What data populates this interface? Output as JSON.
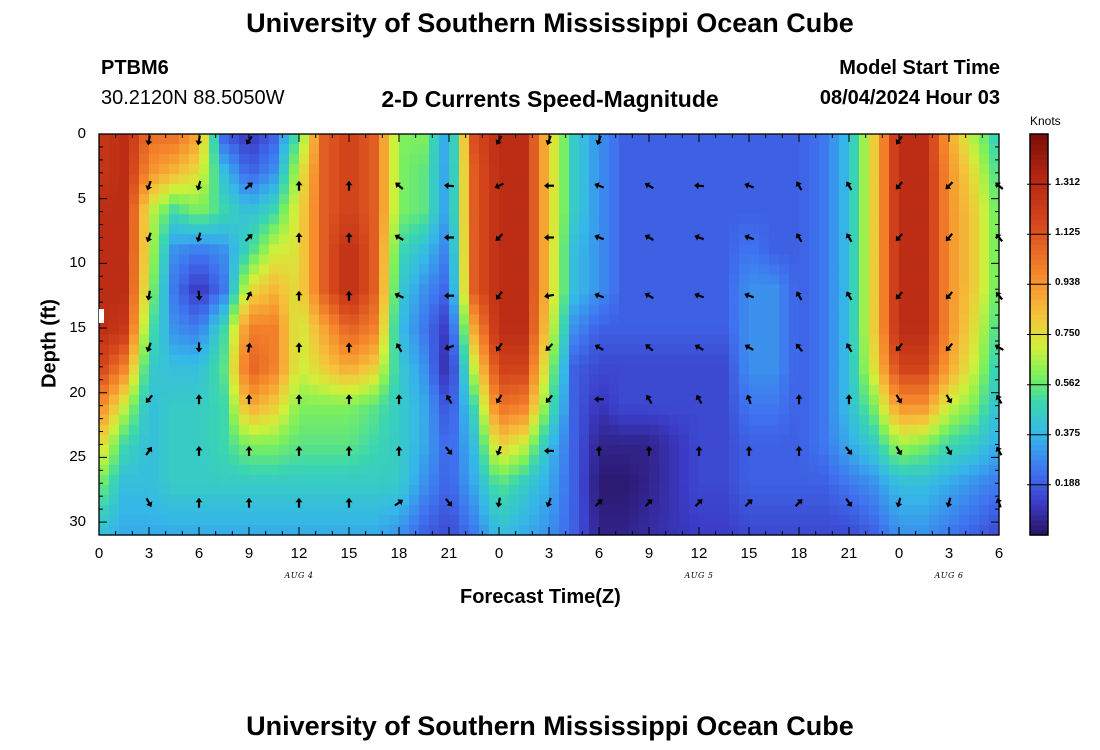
{
  "title": "University of Southern Mississippi Ocean Cube",
  "footer_title": "University of Southern Mississippi Ocean Cube",
  "station": {
    "id": "PTBM6",
    "coords": "30.2120N  88.5050W"
  },
  "plot_title": "2-D Currents Speed-Magnitude",
  "model_start": {
    "label": "Model Start Time",
    "value": "08/04/2024 Hour 03"
  },
  "chart_data": {
    "type": "heatmap",
    "title": "2-D Currents Speed-Magnitude",
    "xlabel": "Forecast Time(Z)",
    "ylabel": "Depth (ft)",
    "x_range_hours": [
      0,
      54
    ],
    "y_range_ft": [
      0,
      31
    ],
    "x_tick_labels": [
      "0",
      "3",
      "6",
      "9",
      "12",
      "15",
      "18",
      "21",
      "0",
      "3",
      "6",
      "9",
      "12",
      "15",
      "18",
      "21",
      "0",
      "3",
      "6"
    ],
    "y_tick_labels": [
      "0",
      "5",
      "10",
      "15",
      "20",
      "25",
      "30"
    ],
    "y_tick_values": [
      0,
      5,
      10,
      15,
      20,
      25,
      30
    ],
    "day_labels": [
      {
        "text": "AUG 4",
        "hour": 12
      },
      {
        "text": "AUG 5",
        "hour": 36
      },
      {
        "text": "AUG 6",
        "hour": 51
      }
    ],
    "colorbar": {
      "label": "Knots",
      "min": 0.0,
      "max": 1.5,
      "ticks": [
        "1.312",
        "1.125",
        "0.938",
        "0.750",
        "0.562",
        "0.375",
        "0.188"
      ],
      "tick_values": [
        1.312,
        1.125,
        0.938,
        0.75,
        0.562,
        0.375,
        0.188
      ]
    },
    "speed_grid": {
      "hours": [
        0,
        1.5,
        3,
        4.5,
        6,
        7.5,
        9,
        10.5,
        12,
        13.5,
        15,
        16.5,
        18,
        19.5,
        21,
        22.5,
        24,
        25.5,
        27,
        28.5,
        30,
        31.5,
        33,
        34.5,
        36,
        37.5,
        39,
        40.5,
        42,
        43.5,
        45,
        46.5,
        48,
        49.5,
        51,
        52.5,
        54
      ],
      "depths": [
        0,
        3,
        6,
        9,
        12,
        15,
        18,
        21,
        24,
        27,
        31
      ],
      "speed": [
        [
          1.25,
          1.3,
          1.05,
          1.05,
          0.9,
          0.2,
          0.1,
          0.2,
          0.55,
          1.1,
          1.2,
          1.1,
          0.6,
          0.6,
          0.3,
          1.15,
          1.3,
          1.3,
          0.8,
          0.45,
          0.3,
          0.2,
          0.2,
          0.2,
          0.2,
          0.2,
          0.2,
          0.2,
          0.2,
          0.25,
          0.4,
          0.8,
          1.3,
          1.3,
          0.9,
          0.65,
          0.45
        ],
        [
          1.25,
          1.3,
          0.95,
          0.85,
          0.75,
          0.4,
          0.2,
          0.3,
          0.7,
          1.1,
          1.2,
          1.1,
          0.6,
          0.55,
          0.3,
          1.1,
          1.3,
          1.3,
          0.8,
          0.45,
          0.3,
          0.2,
          0.2,
          0.2,
          0.2,
          0.2,
          0.2,
          0.2,
          0.2,
          0.25,
          0.4,
          0.8,
          1.3,
          1.3,
          0.95,
          0.75,
          0.5
        ],
        [
          1.3,
          1.3,
          0.7,
          0.5,
          0.6,
          0.5,
          0.4,
          0.5,
          0.75,
          1.1,
          1.2,
          1.1,
          0.6,
          0.55,
          0.3,
          1.1,
          1.3,
          1.3,
          0.8,
          0.45,
          0.3,
          0.2,
          0.2,
          0.2,
          0.2,
          0.2,
          0.2,
          0.2,
          0.2,
          0.25,
          0.4,
          0.8,
          1.3,
          1.3,
          0.95,
          0.8,
          0.55
        ],
        [
          1.3,
          1.3,
          0.7,
          0.3,
          0.25,
          0.3,
          0.5,
          0.7,
          0.75,
          1.1,
          1.3,
          1.1,
          0.5,
          0.4,
          0.25,
          1.1,
          1.3,
          1.3,
          0.8,
          0.4,
          0.3,
          0.2,
          0.2,
          0.2,
          0.2,
          0.2,
          0.25,
          0.2,
          0.2,
          0.25,
          0.4,
          0.8,
          1.3,
          1.3,
          0.95,
          0.8,
          0.55
        ],
        [
          1.3,
          1.3,
          0.65,
          0.25,
          0.1,
          0.25,
          0.75,
          0.85,
          0.75,
          1.1,
          1.3,
          1.1,
          0.45,
          0.3,
          0.2,
          1.1,
          1.3,
          1.3,
          0.8,
          0.4,
          0.3,
          0.2,
          0.2,
          0.2,
          0.2,
          0.2,
          0.3,
          0.3,
          0.2,
          0.25,
          0.4,
          0.8,
          1.3,
          1.3,
          0.95,
          0.8,
          0.55
        ],
        [
          1.3,
          1.25,
          0.55,
          0.3,
          0.25,
          0.5,
          1.0,
          1.0,
          0.7,
          0.9,
          1.1,
          1.0,
          0.4,
          0.25,
          0.1,
          0.9,
          1.3,
          1.3,
          0.75,
          0.3,
          0.2,
          0.2,
          0.2,
          0.2,
          0.2,
          0.2,
          0.3,
          0.3,
          0.2,
          0.25,
          0.4,
          0.8,
          1.3,
          1.3,
          0.95,
          0.75,
          0.5
        ],
        [
          1.2,
          1.0,
          0.45,
          0.4,
          0.4,
          0.55,
          1.1,
          1.0,
          0.7,
          0.8,
          0.9,
          0.8,
          0.45,
          0.3,
          0.05,
          0.7,
          1.2,
          1.2,
          0.65,
          0.2,
          0.15,
          0.15,
          0.15,
          0.15,
          0.15,
          0.15,
          0.3,
          0.3,
          0.2,
          0.25,
          0.4,
          0.75,
          1.2,
          1.2,
          0.9,
          0.7,
          0.45
        ],
        [
          1.0,
          0.7,
          0.4,
          0.45,
          0.45,
          0.5,
          0.9,
          0.8,
          0.6,
          0.6,
          0.6,
          0.55,
          0.45,
          0.35,
          0.15,
          0.5,
          1.05,
          1.0,
          0.55,
          0.2,
          0.1,
          0.15,
          0.15,
          0.15,
          0.15,
          0.15,
          0.25,
          0.25,
          0.2,
          0.25,
          0.4,
          0.6,
          0.95,
          0.95,
          0.7,
          0.6,
          0.4
        ],
        [
          0.8,
          0.5,
          0.4,
          0.45,
          0.45,
          0.5,
          0.6,
          0.6,
          0.55,
          0.55,
          0.55,
          0.5,
          0.45,
          0.35,
          0.2,
          0.4,
          0.8,
          0.7,
          0.4,
          0.2,
          0.05,
          0.05,
          0.05,
          0.1,
          0.15,
          0.15,
          0.2,
          0.2,
          0.2,
          0.25,
          0.35,
          0.45,
          0.65,
          0.6,
          0.5,
          0.45,
          0.35
        ],
        [
          0.6,
          0.4,
          0.4,
          0.45,
          0.45,
          0.45,
          0.45,
          0.45,
          0.45,
          0.45,
          0.45,
          0.45,
          0.45,
          0.3,
          0.2,
          0.35,
          0.55,
          0.45,
          0.35,
          0.2,
          0.02,
          0.02,
          0.05,
          0.1,
          0.15,
          0.15,
          0.2,
          0.2,
          0.2,
          0.2,
          0.25,
          0.3,
          0.4,
          0.4,
          0.35,
          0.3,
          0.25
        ],
        [
          0.4,
          0.35,
          0.35,
          0.35,
          0.35,
          0.35,
          0.35,
          0.35,
          0.35,
          0.35,
          0.35,
          0.35,
          0.3,
          0.2,
          0.15,
          0.25,
          0.4,
          0.35,
          0.3,
          0.2,
          0.05,
          0.05,
          0.08,
          0.1,
          0.12,
          0.12,
          0.15,
          0.15,
          0.15,
          0.15,
          0.15,
          0.2,
          0.3,
          0.3,
          0.25,
          0.2,
          0.15
        ]
      ]
    },
    "vectors": {
      "hours": [
        3,
        6,
        9,
        12,
        15,
        18,
        21,
        24,
        27,
        30,
        33,
        36,
        39,
        42,
        45,
        48,
        51,
        54
      ],
      "depths": [
        0.5,
        4,
        8,
        12.5,
        16.5,
        20.5,
        24.5,
        28.5
      ],
      "direction_deg": [
        [
          190,
          190,
          215,
          null,
          null,
          null,
          null,
          210,
          200,
          200,
          null,
          null,
          null,
          null,
          null,
          215,
          null,
          null
        ],
        [
          200,
          195,
          50,
          0,
          0,
          310,
          275,
          245,
          270,
          290,
          300,
          275,
          290,
          330,
          330,
          220,
          225,
          310
        ],
        [
          200,
          195,
          45,
          0,
          0,
          300,
          270,
          225,
          270,
          290,
          300,
          290,
          290,
          330,
          330,
          220,
          220,
          320
        ],
        [
          190,
          175,
          25,
          0,
          0,
          295,
          270,
          215,
          260,
          290,
          300,
          290,
          290,
          330,
          330,
          220,
          220,
          320
        ],
        [
          200,
          180,
          10,
          0,
          0,
          330,
          250,
          215,
          225,
          300,
          310,
          300,
          300,
          320,
          330,
          220,
          220,
          300
        ],
        [
          220,
          0,
          0,
          0,
          0,
          0,
          330,
          210,
          220,
          270,
          330,
          330,
          340,
          0,
          0,
          150,
          150,
          330
        ],
        [
          35,
          0,
          0,
          0,
          0,
          0,
          140,
          200,
          270,
          0,
          0,
          0,
          0,
          0,
          140,
          150,
          150,
          330
        ],
        [
          150,
          0,
          0,
          0,
          0,
          55,
          140,
          190,
          200,
          45,
          45,
          45,
          45,
          45,
          145,
          195,
          195,
          340
        ]
      ]
    }
  }
}
